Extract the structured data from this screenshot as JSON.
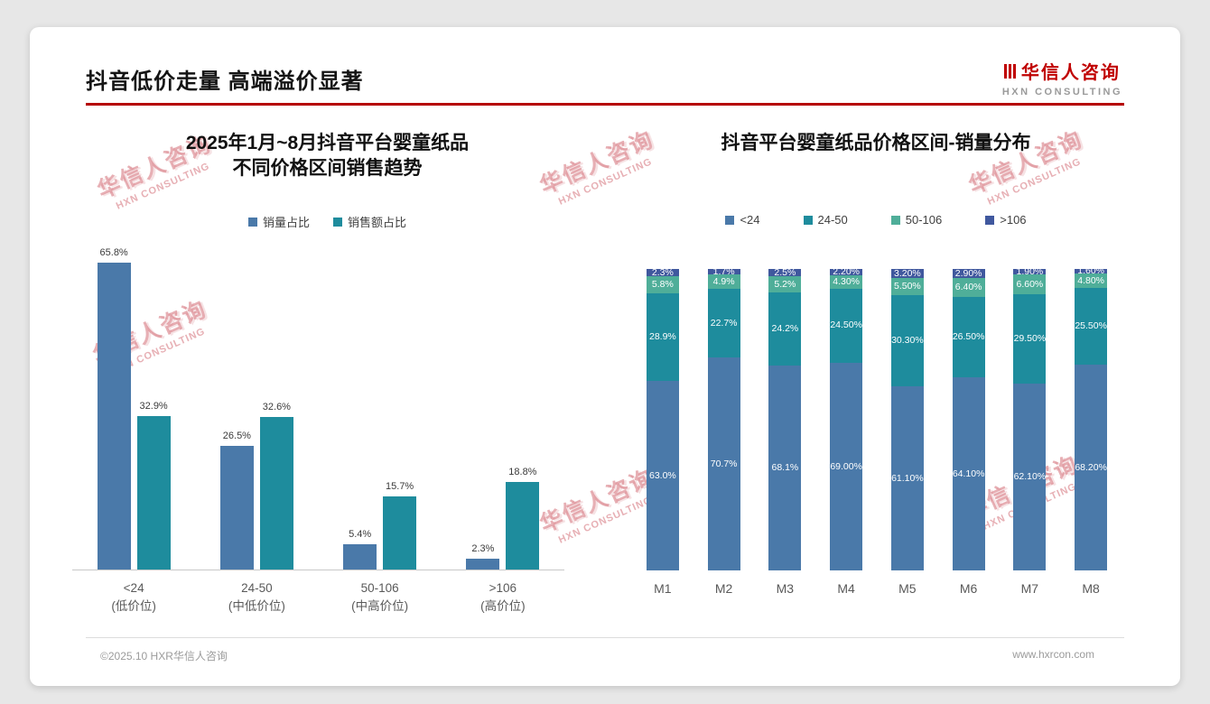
{
  "slide": {
    "title": "抖音低价走量 高端溢价显著",
    "logo": {
      "cn": "华信人咨询",
      "en": "HXN CONSULTING"
    },
    "watermark": {
      "cn": "华信人咨询",
      "en": "HXN CONSULTING"
    },
    "footer": {
      "left": "©2025.10 HXR华信人咨询",
      "right": "www.hxrcon.com"
    }
  },
  "chart_data": [
    {
      "type": "bar",
      "variant": "grouped",
      "title": "2025年1月~8月抖音平台婴童纸品 不同价格区间销售趋势",
      "title_line1": "2025年1月~8月抖音平台婴童纸品",
      "title_line2": "不同价格区间销售趋势",
      "categories": [
        "<24",
        "24-50",
        "50-106",
        ">106"
      ],
      "category_sublabels": [
        "(低价位)",
        "(中低价位)",
        "(中高价位)",
        "(高价位)"
      ],
      "ylim": [
        0,
        70
      ],
      "grid": false,
      "legend_position": "top",
      "value_suffix": "%",
      "series": [
        {
          "name": "销量占比",
          "color": "#4a79a9",
          "values": [
            65.8,
            26.5,
            5.4,
            2.3
          ],
          "labels": [
            "65.8%",
            "26.5%",
            "5.4%",
            "2.3%"
          ]
        },
        {
          "name": "销售额占比",
          "color": "#1e8c9d",
          "values": [
            32.9,
            32.6,
            15.7,
            18.8
          ],
          "labels": [
            "32.9%",
            "32.6%",
            "15.7%",
            "18.8%"
          ]
        }
      ]
    },
    {
      "type": "bar",
      "variant": "stacked-100",
      "title": "抖音平台婴童纸品价格区间-销量分布",
      "categories": [
        "M1",
        "M2",
        "M3",
        "M4",
        "M5",
        "M6",
        "M7",
        "M8"
      ],
      "ylim": [
        0,
        100
      ],
      "grid": false,
      "legend_position": "top",
      "value_suffix": "%",
      "series": [
        {
          "name": "<24",
          "color": "#4a79a9",
          "values": [
            63.0,
            70.7,
            68.1,
            69.0,
            61.1,
            64.1,
            62.1,
            68.2
          ],
          "labels": [
            "63.0%",
            "70.7%",
            "68.1%",
            "69.00%",
            "61.10%",
            "64.10%",
            "62.10%",
            "68.20%"
          ]
        },
        {
          "name": "24-50",
          "color": "#1e8c9d",
          "values": [
            28.9,
            22.7,
            24.2,
            24.5,
            30.3,
            26.5,
            29.5,
            25.5
          ],
          "labels": [
            "28.9%",
            "22.7%",
            "24.2%",
            "24.50%",
            "30.30%",
            "26.50%",
            "29.50%",
            "25.50%"
          ]
        },
        {
          "name": "50-106",
          "color": "#4fae99",
          "values": [
            5.8,
            4.9,
            5.2,
            4.3,
            5.5,
            6.4,
            6.6,
            4.8
          ],
          "labels": [
            "5.8%",
            "4.9%",
            "5.2%",
            "4.30%",
            "5.50%",
            "6.40%",
            "6.60%",
            "4.80%"
          ]
        },
        {
          "name": ">106",
          "color": "#40589e",
          "values": [
            2.3,
            1.7,
            2.5,
            2.2,
            3.2,
            2.9,
            1.9,
            1.6
          ],
          "labels": [
            "2.3%",
            "1.7%",
            "2.5%",
            "2.20%",
            "3.20%",
            "2.90%",
            "1.90%",
            "1.60%"
          ]
        }
      ]
    }
  ]
}
